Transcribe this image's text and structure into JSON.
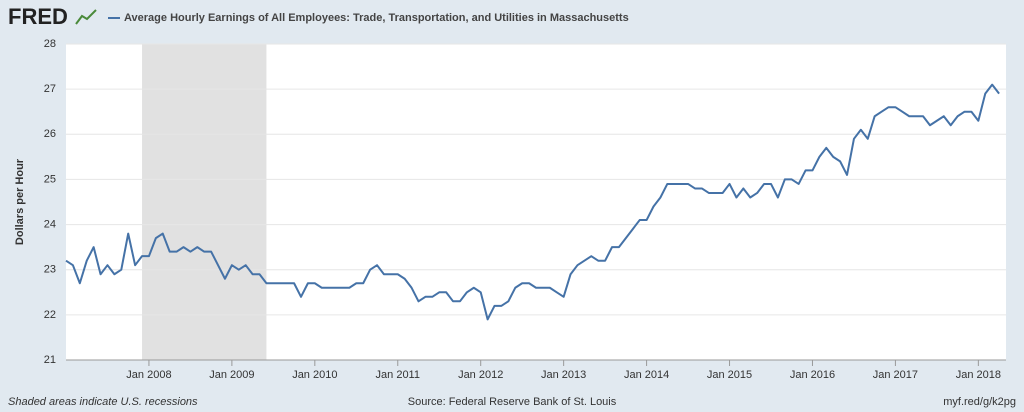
{
  "logo": "FRED",
  "chart_data": {
    "type": "line",
    "ylabel": "Dollars per Hour",
    "recession_note": "Shaded areas indicate U.S. recessions",
    "source": "Source: Federal Reserve Bank of St. Louis",
    "link": "myf.red/g/k2pg",
    "recessions": [
      {
        "start": "2007-12",
        "end": "2009-06"
      }
    ],
    "xlim": [
      "2007-01",
      "2018-05"
    ],
    "ylim": [
      21,
      28
    ],
    "yticks": [
      21,
      22,
      23,
      24,
      25,
      26,
      27,
      28
    ],
    "xticks": [
      {
        "value": "2008-01",
        "label": "Jan 2008"
      },
      {
        "value": "2009-01",
        "label": "Jan 2009"
      },
      {
        "value": "2010-01",
        "label": "Jan 2010"
      },
      {
        "value": "2011-01",
        "label": "Jan 2011"
      },
      {
        "value": "2012-01",
        "label": "Jan 2012"
      },
      {
        "value": "2013-01",
        "label": "Jan 2013"
      },
      {
        "value": "2014-01",
        "label": "Jan 2014"
      },
      {
        "value": "2015-01",
        "label": "Jan 2015"
      },
      {
        "value": "2016-01",
        "label": "Jan 2016"
      },
      {
        "value": "2017-01",
        "label": "Jan 2017"
      },
      {
        "value": "2018-01",
        "label": "Jan 2018"
      }
    ],
    "grid": true,
    "x": [
      "2007-01",
      "2007-02",
      "2007-03",
      "2007-04",
      "2007-05",
      "2007-06",
      "2007-07",
      "2007-08",
      "2007-09",
      "2007-10",
      "2007-11",
      "2007-12",
      "2008-01",
      "2008-02",
      "2008-03",
      "2008-04",
      "2008-05",
      "2008-06",
      "2008-07",
      "2008-08",
      "2008-09",
      "2008-10",
      "2008-11",
      "2008-12",
      "2009-01",
      "2009-02",
      "2009-03",
      "2009-04",
      "2009-05",
      "2009-06",
      "2009-07",
      "2009-08",
      "2009-09",
      "2009-10",
      "2009-11",
      "2009-12",
      "2010-01",
      "2010-02",
      "2010-03",
      "2010-04",
      "2010-05",
      "2010-06",
      "2010-07",
      "2010-08",
      "2010-09",
      "2010-10",
      "2010-11",
      "2010-12",
      "2011-01",
      "2011-02",
      "2011-03",
      "2011-04",
      "2011-05",
      "2011-06",
      "2011-07",
      "2011-08",
      "2011-09",
      "2011-10",
      "2011-11",
      "2011-12",
      "2012-01",
      "2012-02",
      "2012-03",
      "2012-04",
      "2012-05",
      "2012-06",
      "2012-07",
      "2012-08",
      "2012-09",
      "2012-10",
      "2012-11",
      "2012-12",
      "2013-01",
      "2013-02",
      "2013-03",
      "2013-04",
      "2013-05",
      "2013-06",
      "2013-07",
      "2013-08",
      "2013-09",
      "2013-10",
      "2013-11",
      "2013-12",
      "2014-01",
      "2014-02",
      "2014-03",
      "2014-04",
      "2014-05",
      "2014-06",
      "2014-07",
      "2014-08",
      "2014-09",
      "2014-10",
      "2014-11",
      "2014-12",
      "2015-01",
      "2015-02",
      "2015-03",
      "2015-04",
      "2015-05",
      "2015-06",
      "2015-07",
      "2015-08",
      "2015-09",
      "2015-10",
      "2015-11",
      "2015-12",
      "2016-01",
      "2016-02",
      "2016-03",
      "2016-04",
      "2016-05",
      "2016-06",
      "2016-07",
      "2016-08",
      "2016-09",
      "2016-10",
      "2016-11",
      "2016-12",
      "2017-01",
      "2017-02",
      "2017-03",
      "2017-04",
      "2017-05",
      "2017-06",
      "2017-07",
      "2017-08",
      "2017-09",
      "2017-10",
      "2017-11",
      "2017-12",
      "2018-01",
      "2018-02",
      "2018-03",
      "2018-04"
    ],
    "series": [
      {
        "name": "Average Hourly Earnings of All Employees: Trade, Transportation, and Utilities in Massachusetts",
        "color": "#4572a7",
        "values": [
          23.2,
          23.1,
          22.7,
          23.2,
          23.5,
          22.9,
          23.1,
          22.9,
          23.0,
          23.8,
          23.1,
          23.3,
          23.3,
          23.7,
          23.8,
          23.4,
          23.4,
          23.5,
          23.4,
          23.5,
          23.4,
          23.4,
          23.1,
          22.8,
          23.1,
          23.0,
          23.1,
          22.9,
          22.9,
          22.7,
          22.7,
          22.7,
          22.7,
          22.7,
          22.4,
          22.7,
          22.7,
          22.6,
          22.6,
          22.6,
          22.6,
          22.6,
          22.7,
          22.7,
          23.0,
          23.1,
          22.9,
          22.9,
          22.9,
          22.8,
          22.6,
          22.3,
          22.4,
          22.4,
          22.5,
          22.5,
          22.3,
          22.3,
          22.5,
          22.6,
          22.5,
          21.9,
          22.2,
          22.2,
          22.3,
          22.6,
          22.7,
          22.7,
          22.6,
          22.6,
          22.6,
          22.5,
          22.4,
          22.9,
          23.1,
          23.2,
          23.3,
          23.2,
          23.2,
          23.5,
          23.5,
          23.7,
          23.9,
          24.1,
          24.1,
          24.4,
          24.6,
          24.9,
          24.9,
          24.9,
          24.9,
          24.8,
          24.8,
          24.7,
          24.7,
          24.7,
          24.9,
          24.6,
          24.8,
          24.6,
          24.7,
          24.9,
          24.9,
          24.6,
          25.0,
          25.0,
          24.9,
          25.2,
          25.2,
          25.5,
          25.7,
          25.5,
          25.4,
          25.1,
          25.9,
          26.1,
          25.9,
          26.4,
          26.5,
          26.6,
          26.6,
          26.5,
          26.4,
          26.4,
          26.4,
          26.2,
          26.3,
          26.4,
          26.2,
          26.4,
          26.5,
          26.5,
          26.3,
          26.9,
          27.1,
          26.9
        ]
      }
    ]
  }
}
